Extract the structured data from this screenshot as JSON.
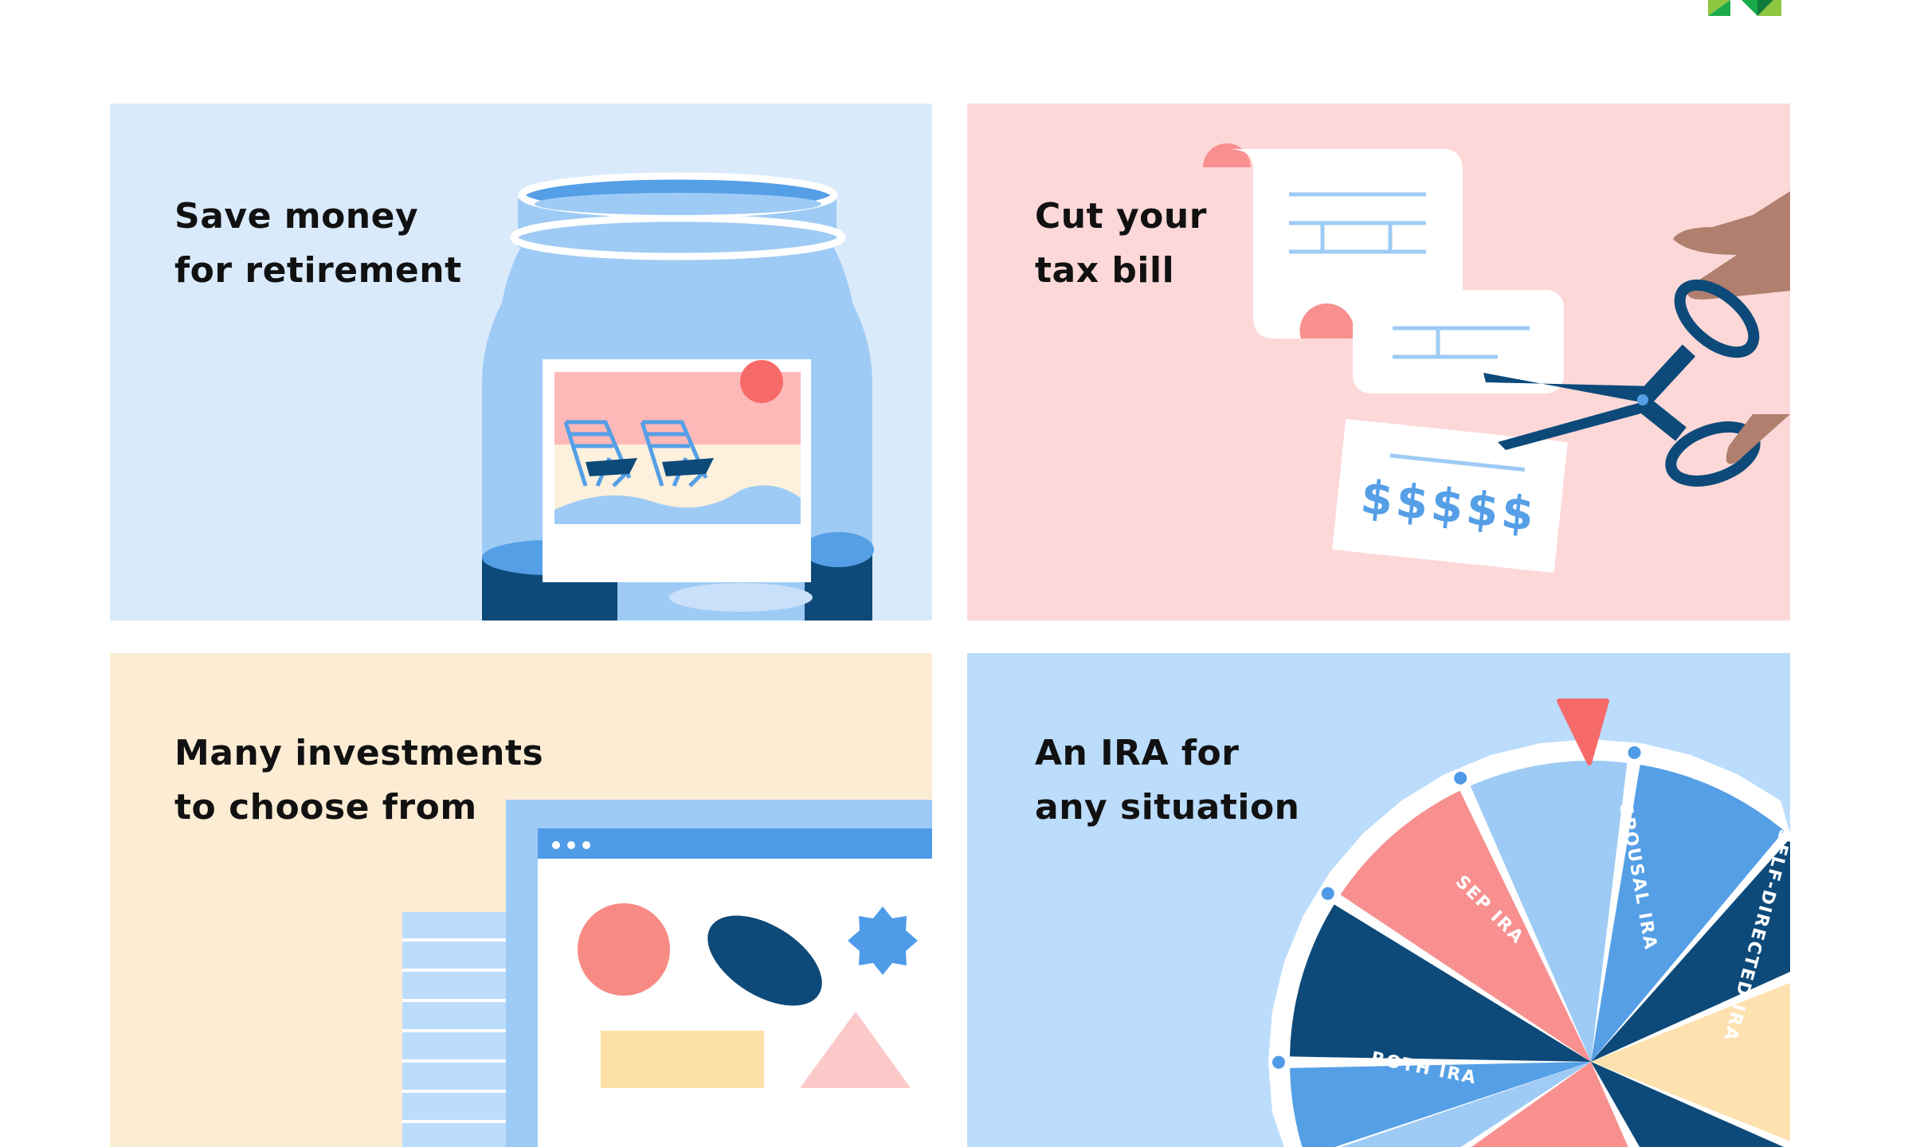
{
  "colors": {
    "panel_retirement": "#d9eafb",
    "panel_tax": "#fdd8d8",
    "panel_investments": "#fdecd4",
    "panel_ira": "#bcdcfb",
    "navy": "#0d4a7a",
    "light_blue": "#9ecbf5",
    "mid_blue": "#559fe6",
    "pink": "#f89090",
    "yellow": "#fde2b0",
    "red": "#f76a6a"
  },
  "logo": {
    "icon": "green-chevron-logo"
  },
  "panels": [
    {
      "id": "retirement",
      "title_lines": [
        "Save money",
        "for retirement"
      ],
      "icon": "savings-jar-illustration"
    },
    {
      "id": "tax",
      "title_lines": [
        "Cut your",
        "tax bill"
      ],
      "icon": "scissors-cutting-receipt-illustration",
      "check_text": "$$$$$"
    },
    {
      "id": "investments",
      "title_lines": [
        "Many investments",
        "to choose from"
      ],
      "icon": "browser-window-shapes-illustration"
    },
    {
      "id": "ira",
      "title_lines": [
        "An IRA for",
        "any situation"
      ],
      "icon": "prize-wheel-illustration",
      "wheel_labels": [
        "SPOUSAL IRA",
        "SEP IRA",
        "ROTH IRA",
        "SELF-DIRECTED IRA"
      ]
    }
  ]
}
